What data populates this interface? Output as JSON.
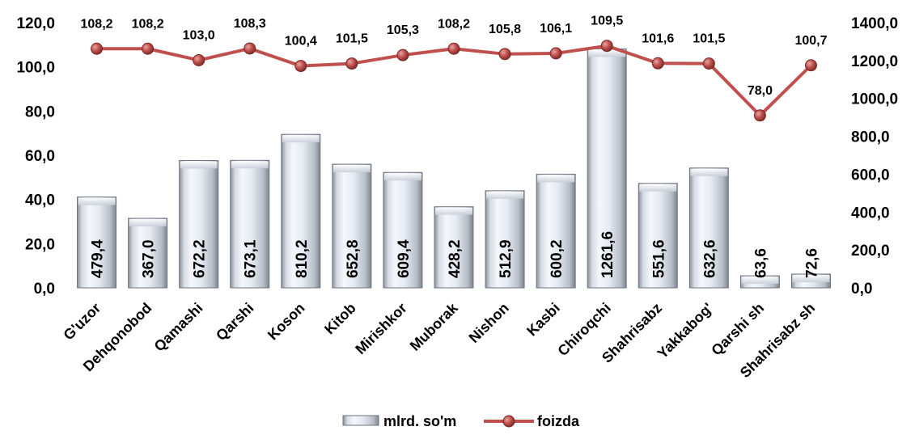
{
  "chart_data": {
    "type": "bar+line",
    "categories": [
      "G'uzor",
      "Dehqonobod",
      "Qamashi",
      "Qarshi",
      "Koson",
      "Kitob",
      "Mirishkor",
      "Muborak",
      "Nishon",
      "Kasbi",
      "Chiroqchi",
      "Shahrisabz",
      "Yakkabog'",
      "Qarshi sh",
      "Shahrisabz sh"
    ],
    "series": [
      {
        "name": "mlrd. so'm",
        "type": "bar",
        "axis": "right",
        "values": [
          479.4,
          367.0,
          672.2,
          673.1,
          810.2,
          652.8,
          609.4,
          428.2,
          512.9,
          600.2,
          1261.6,
          551.6,
          632.6,
          63.6,
          72.6
        ],
        "labels": [
          "479,4",
          "367,0",
          "672,2",
          "673,1",
          "810,2",
          "652,8",
          "609,4",
          "428,2",
          "512,9",
          "600,2",
          "1261,6",
          "551,6",
          "632,6",
          "63,6",
          "72,6"
        ],
        "color": "#dce6f2"
      },
      {
        "name": "foizda",
        "type": "line",
        "axis": "left",
        "values": [
          108.2,
          108.2,
          103.0,
          108.3,
          100.4,
          101.5,
          105.3,
          108.2,
          105.8,
          106.1,
          109.5,
          101.6,
          101.5,
          78.0,
          100.7
        ],
        "labels": [
          "108,2",
          "108,2",
          "103,0",
          "108,3",
          "100,4",
          "101,5",
          "105,3",
          "108,2",
          "105,8",
          "106,1",
          "109,5",
          "101,6",
          "101,5",
          "78,0",
          "100,7"
        ],
        "color": "#c0504d"
      }
    ],
    "left_axis": {
      "ylim": [
        0,
        120
      ],
      "ticks": [
        0,
        20,
        40,
        60,
        80,
        100,
        120
      ],
      "tick_labels": [
        "0,0",
        "20,0",
        "40,0",
        "60,0",
        "80,0",
        "100,0",
        "120,0"
      ]
    },
    "right_axis": {
      "ylim": [
        0,
        1400
      ],
      "ticks": [
        0,
        200,
        400,
        600,
        800,
        1000,
        1200,
        1400
      ],
      "tick_labels": [
        "0,0",
        "200,0",
        "400,0",
        "600,0",
        "800,0",
        "1000,0",
        "1200,0",
        "1400,0"
      ]
    },
    "grid": false,
    "legend": {
      "position": "bottom",
      "items": [
        {
          "label": "mlrd. so'm",
          "icon": "bar-swatch-icon"
        },
        {
          "label": "foizda",
          "icon": "line-marker-icon"
        }
      ]
    },
    "title": "",
    "xlabel": "",
    "ylabel": ""
  }
}
